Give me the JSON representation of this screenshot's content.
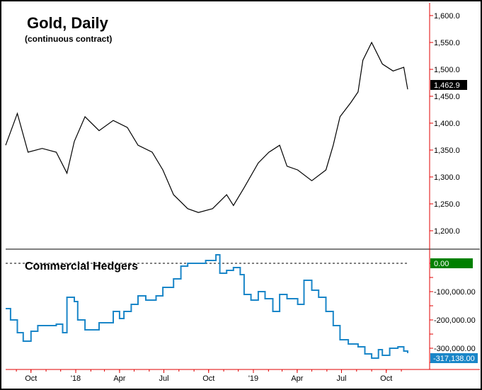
{
  "chart_data": [
    {
      "type": "line",
      "title": "Gold, Daily",
      "subtitle": "(continuous contract)",
      "ylim": [
        1170,
        1620
      ],
      "yticks": [
        "1,600.0",
        "1,550.0",
        "1,500.0",
        "1,450.0",
        "1,400.0",
        "1,350.0",
        "1,300.0",
        "1,250.0",
        "1,200.0"
      ],
      "ytick_values": [
        1600,
        1550,
        1500,
        1450,
        1400,
        1350,
        1300,
        1250,
        1200
      ],
      "last_value_label": "1,462.9",
      "line_color": "#000000",
      "points": [
        [
          "2017-08-10",
          1359
        ],
        [
          "2017-09-03",
          1418
        ],
        [
          "2017-09-25",
          1346
        ],
        [
          "2017-10-24",
          1353
        ],
        [
          "2017-11-22",
          1346
        ],
        [
          "2017-12-14",
          1307
        ],
        [
          "2017-12-29",
          1366
        ],
        [
          "2018-01-20",
          1412
        ],
        [
          "2018-02-18",
          1386
        ],
        [
          "2018-03-19",
          1405
        ],
        [
          "2018-04-17",
          1392
        ],
        [
          "2018-05-09",
          1359
        ],
        [
          "2018-06-07",
          1346
        ],
        [
          "2018-06-29",
          1313
        ],
        [
          "2018-07-21",
          1267
        ],
        [
          "2018-08-19",
          1241
        ],
        [
          "2018-09-10",
          1234
        ],
        [
          "2018-10-09",
          1241
        ],
        [
          "2018-11-07",
          1267
        ],
        [
          "2018-11-21",
          1247
        ],
        [
          "2018-12-13",
          1280
        ],
        [
          "2019-01-11",
          1326
        ],
        [
          "2019-02-02",
          1346
        ],
        [
          "2019-02-24",
          1359
        ],
        [
          "2019-03-11",
          1320
        ],
        [
          "2019-04-02",
          1313
        ],
        [
          "2019-05-01",
          1293
        ],
        [
          "2019-05-30",
          1313
        ],
        [
          "2019-06-14",
          1359
        ],
        [
          "2019-06-28",
          1412
        ],
        [
          "2019-07-20",
          1438
        ],
        [
          "2019-08-04",
          1458
        ],
        [
          "2019-08-14",
          1517
        ],
        [
          "2019-09-01",
          1550
        ],
        [
          "2019-09-23",
          1510
        ],
        [
          "2019-10-15",
          1497
        ],
        [
          "2019-11-06",
          1504
        ],
        [
          "2019-11-14",
          1462.9
        ]
      ]
    },
    {
      "type": "line",
      "title": "Commercial Hedgers",
      "step": true,
      "ylim": [
        -380000,
        50000
      ],
      "yticks": [
        "-100,000.00",
        "-200,000.00",
        "-300,000.00"
      ],
      "ytick_values": [
        -100000,
        -200000,
        -300000
      ],
      "zero_label": "0.00",
      "last_value_label": "-317,138.00",
      "line_color": "#1a86c8",
      "zero_color": "#008000",
      "points": [
        [
          "2017-08-10",
          -160000
        ],
        [
          "2017-08-20",
          -200000
        ],
        [
          "2017-09-03",
          -245000
        ],
        [
          "2017-09-15",
          -275000
        ],
        [
          "2017-10-01",
          -240000
        ],
        [
          "2017-10-15",
          -220000
        ],
        [
          "2017-11-22",
          -215000
        ],
        [
          "2017-12-05",
          -245000
        ],
        [
          "2017-12-14",
          -120000
        ],
        [
          "2017-12-29",
          -135000
        ],
        [
          "2018-01-05",
          -200000
        ],
        [
          "2018-01-20",
          -235000
        ],
        [
          "2018-02-18",
          -210000
        ],
        [
          "2018-03-19",
          -170000
        ],
        [
          "2018-04-01",
          -195000
        ],
        [
          "2018-04-10",
          -170000
        ],
        [
          "2018-04-25",
          -145000
        ],
        [
          "2018-05-09",
          -115000
        ],
        [
          "2018-05-25",
          -130000
        ],
        [
          "2018-06-15",
          -115000
        ],
        [
          "2018-06-29",
          -85000
        ],
        [
          "2018-07-21",
          -55000
        ],
        [
          "2018-08-05",
          -10000
        ],
        [
          "2018-08-19",
          0
        ],
        [
          "2018-09-25",
          10000
        ],
        [
          "2018-10-16",
          30000
        ],
        [
          "2018-10-24",
          -35000
        ],
        [
          "2018-11-07",
          -25000
        ],
        [
          "2018-11-21",
          -15000
        ],
        [
          "2018-12-05",
          -40000
        ],
        [
          "2018-12-13",
          -110000
        ],
        [
          "2018-12-27",
          -130000
        ],
        [
          "2019-01-11",
          -100000
        ],
        [
          "2019-01-25",
          -125000
        ],
        [
          "2019-02-10",
          -170000
        ],
        [
          "2019-02-24",
          -110000
        ],
        [
          "2019-03-11",
          -125000
        ],
        [
          "2019-04-02",
          -145000
        ],
        [
          "2019-04-15",
          -60000
        ],
        [
          "2019-05-01",
          -95000
        ],
        [
          "2019-05-15",
          -120000
        ],
        [
          "2019-05-30",
          -170000
        ],
        [
          "2019-06-14",
          -220000
        ],
        [
          "2019-06-28",
          -270000
        ],
        [
          "2019-07-15",
          -285000
        ],
        [
          "2019-08-04",
          -295000
        ],
        [
          "2019-08-18",
          -320000
        ],
        [
          "2019-09-01",
          -335000
        ],
        [
          "2019-09-15",
          -305000
        ],
        [
          "2019-09-23",
          -325000
        ],
        [
          "2019-10-08",
          -300000
        ],
        [
          "2019-10-25",
          -295000
        ],
        [
          "2019-11-06",
          -310000
        ],
        [
          "2019-11-14",
          -317138
        ]
      ]
    }
  ],
  "x_axis": {
    "range": [
      "2017-08-10",
      "2019-11-14"
    ],
    "ticks": [
      {
        "label": "Oct",
        "date": "2017-10-01"
      },
      {
        "label": "'18",
        "date": "2018-01-01"
      },
      {
        "label": "Apr",
        "date": "2018-04-01"
      },
      {
        "label": "Jul",
        "date": "2018-07-01"
      },
      {
        "label": "Oct",
        "date": "2018-10-01"
      },
      {
        "label": "'19",
        "date": "2019-01-01"
      },
      {
        "label": "Apr",
        "date": "2019-04-01"
      },
      {
        "label": "Jul",
        "date": "2019-07-01"
      },
      {
        "label": "Oct",
        "date": "2019-10-01"
      }
    ],
    "axis_color": "#e00000"
  }
}
